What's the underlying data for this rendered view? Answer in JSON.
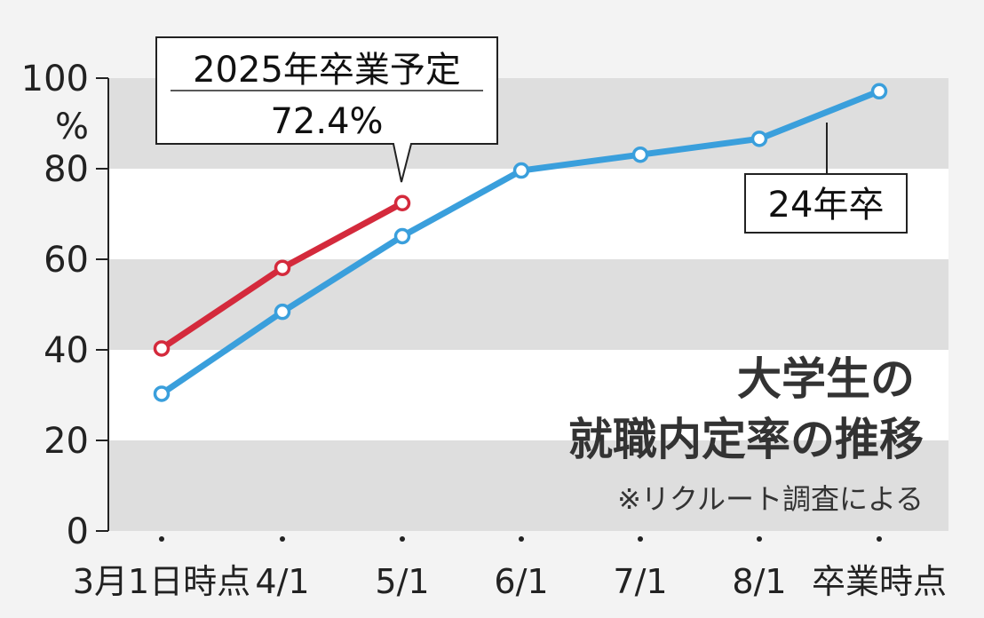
{
  "chart_data": {
    "type": "line",
    "title": "大学生の",
    "subtitle": "就職内定率の推移",
    "note": "※リクルート調査による",
    "y_unit": "%",
    "ylim": [
      0,
      100
    ],
    "y_ticks": [
      "0",
      "20",
      "40",
      "60",
      "80",
      "100"
    ],
    "categories": [
      "3月1日時点",
      "4/1",
      "5/1",
      "6/1",
      "7/1",
      "8/1",
      "卒業時点"
    ],
    "grid": "alternating horizontal bands",
    "series": [
      {
        "name": "2025年卒業予定",
        "color": "#d42a3c",
        "values": [
          40.3,
          58.1,
          72.4,
          null,
          null,
          null,
          null
        ]
      },
      {
        "name": "24年卒",
        "color": "#3a9fdc",
        "values": [
          30.3,
          48.4,
          65.1,
          79.6,
          83.1,
          86.6,
          97.1
        ]
      }
    ],
    "annotations": [
      {
        "series": "2025年卒業予定",
        "label": "2025年卒業予定",
        "value_label": "72.4%"
      },
      {
        "series": "24年卒",
        "label": "24年卒"
      }
    ]
  }
}
